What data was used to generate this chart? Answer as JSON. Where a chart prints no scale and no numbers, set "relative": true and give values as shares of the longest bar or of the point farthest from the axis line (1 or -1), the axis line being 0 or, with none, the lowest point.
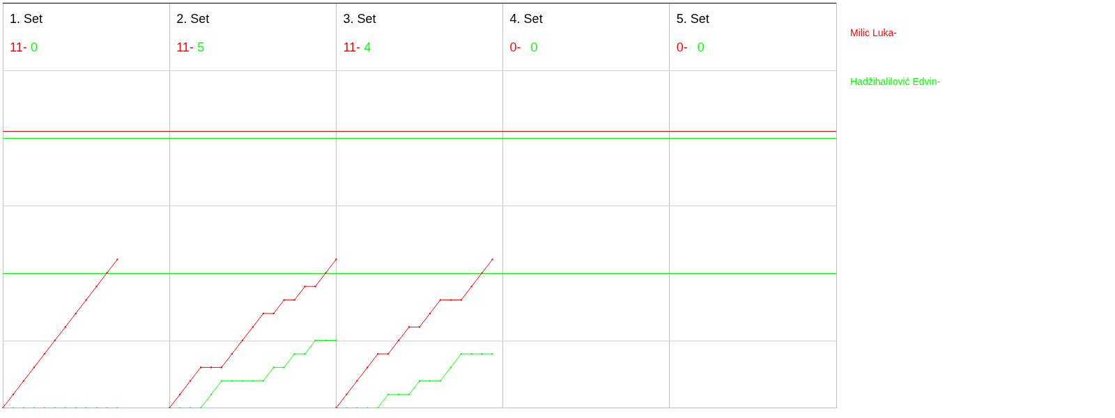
{
  "chart_data": {
    "type": "line",
    "relative": true,
    "marker": "square",
    "grid": "x",
    "annotations": [
      "1. Set",
      "11-",
      "0",
      "2. Set",
      "11-",
      "5",
      "3. Set",
      "11-",
      "4",
      "4. Set",
      "0-",
      "0",
      "5. Set",
      "0-",
      "0"
    ],
    "categories": [
      null,
      null,
      null,
      null,
      null,
      null,
      null,
      null,
      null,
      null,
      null,
      null,
      null,
      null,
      null,
      null,
      null,
      null,
      null,
      null,
      null,
      null,
      null,
      null,
      null,
      null,
      null,
      null,
      null,
      null,
      null,
      null,
      null,
      null,
      null,
      null,
      null,
      null,
      null,
      null,
      null,
      null,
      null,
      null,
      null,
      null,
      null,
      null,
      null,
      null,
      null,
      null,
      null,
      null,
      null,
      null,
      null,
      null,
      null,
      null,
      null,
      null,
      null,
      null,
      null,
      null,
      null,
      null,
      null,
      null,
      null,
      null,
      null,
      null,
      null,
      null,
      null,
      null,
      null,
      null,
      null
    ],
    "series": [
      {
        "name": "Milic Luka-",
        "color": "#ff0000",
        "values": [
          0,
          0.091,
          0.182,
          0.273,
          0.364,
          0.455,
          0.545,
          0.636,
          0.727,
          0.818,
          0.909,
          1,
          null,
          null,
          null,
          null,
          null,
          null,
          null,
          null,
          null,
          null,
          null,
          null,
          null,
          null,
          null,
          null,
          null,
          null,
          null,
          null,
          null,
          null,
          null,
          null,
          null,
          null,
          null,
          null,
          null,
          null,
          null,
          null,
          null,
          null,
          null,
          null,
          null,
          null,
          null,
          null,
          null,
          null,
          null,
          null,
          null,
          null,
          null,
          null,
          null,
          null,
          null,
          null,
          null,
          null,
          null,
          null,
          null,
          null,
          null,
          null,
          null,
          null,
          null,
          null,
          null,
          null,
          null,
          null,
          null
        ]
      },
      {
        "name": "Hadžihalilović Edvin-",
        "color": "#00ff00",
        "values": [
          0,
          0,
          0,
          0,
          0,
          0,
          0,
          0,
          0,
          0,
          0,
          0,
          null,
          null,
          null,
          null,
          null,
          null,
          null,
          null,
          null,
          null,
          null,
          null,
          null,
          null,
          null,
          null,
          null,
          null,
          null,
          null,
          null,
          null,
          null,
          null,
          null,
          null,
          null,
          null,
          null,
          null,
          null,
          null,
          null,
          null,
          null,
          null,
          null,
          null,
          null,
          null,
          null,
          null,
          null,
          null,
          null,
          null,
          null,
          null,
          null,
          null,
          null,
          null,
          null,
          null,
          null,
          null,
          null,
          null,
          null,
          null,
          null,
          null,
          null,
          null,
          null,
          null,
          null,
          null,
          null
        ]
      },
      {
        "color": "#ff0000",
        "values": [
          null,
          null,
          null,
          null,
          null,
          null,
          null,
          null,
          null,
          null,
          null,
          null,
          null,
          null,
          null,
          null,
          0,
          0.091,
          0.182,
          0.273,
          0.273,
          0.273,
          0.364,
          0.455,
          0.545,
          0.636,
          0.636,
          0.727,
          0.727,
          0.818,
          0.818,
          0.909,
          1,
          null,
          null,
          null,
          null,
          null,
          null,
          null,
          null,
          null,
          null,
          null,
          null,
          null,
          null,
          null,
          null,
          null,
          null,
          null,
          null,
          null,
          null,
          null,
          null,
          null,
          null,
          null,
          null,
          null,
          null,
          null,
          null,
          null,
          null,
          null,
          null,
          null,
          null,
          null,
          null,
          null,
          null,
          null,
          null,
          null,
          null,
          null,
          null
        ]
      },
      {
        "color": "#00ff00",
        "values": [
          null,
          null,
          null,
          null,
          null,
          null,
          null,
          null,
          null,
          null,
          null,
          null,
          null,
          null,
          null,
          null,
          0,
          0,
          0,
          0,
          0.091,
          0.182,
          0.182,
          0.182,
          0.182,
          0.182,
          0.273,
          0.273,
          0.364,
          0.364,
          0.455,
          0.455,
          0.455,
          null,
          null,
          null,
          null,
          null,
          null,
          null,
          null,
          null,
          null,
          null,
          null,
          null,
          null,
          null,
          null,
          null,
          null,
          null,
          null,
          null,
          null,
          null,
          null,
          null,
          null,
          null,
          null,
          null,
          null,
          null,
          null,
          null,
          null,
          null,
          null,
          null,
          null,
          null,
          null,
          null,
          null,
          null,
          null,
          null,
          null,
          null,
          null
        ]
      },
      {
        "color": "#ff0000",
        "values": [
          null,
          null,
          null,
          null,
          null,
          null,
          null,
          null,
          null,
          null,
          null,
          null,
          null,
          null,
          null,
          null,
          null,
          null,
          null,
          null,
          null,
          null,
          null,
          null,
          null,
          null,
          null,
          null,
          null,
          null,
          null,
          null,
          0,
          0.091,
          0.182,
          0.273,
          0.364,
          0.364,
          0.455,
          0.545,
          0.545,
          0.636,
          0.727,
          0.727,
          0.727,
          0.818,
          0.909,
          1,
          null,
          null,
          null,
          null,
          null,
          null,
          null,
          null,
          null,
          null,
          null,
          null,
          null,
          null,
          null,
          null,
          null,
          null,
          null,
          null,
          null,
          null,
          null,
          null,
          null,
          null,
          null,
          null,
          null,
          null,
          null,
          null,
          null
        ]
      },
      {
        "color": "#00ff00",
        "values": [
          null,
          null,
          null,
          null,
          null,
          null,
          null,
          null,
          null,
          null,
          null,
          null,
          null,
          null,
          null,
          null,
          null,
          null,
          null,
          null,
          null,
          null,
          null,
          null,
          null,
          null,
          null,
          null,
          null,
          null,
          null,
          null,
          0,
          0,
          0,
          0,
          0,
          0.091,
          0.091,
          0.091,
          0.182,
          0.182,
          0.182,
          0.273,
          0.364,
          0.364,
          0.364,
          0.364,
          null,
          null,
          null,
          null,
          null,
          null,
          null,
          null,
          null,
          null,
          null,
          null,
          null,
          null,
          null,
          null,
          null,
          null,
          null,
          null,
          null,
          null,
          null,
          null,
          null,
          null,
          null,
          null,
          null,
          null,
          null,
          null,
          null
        ]
      }
    ],
    "ref_lines": [
      {
        "axis": "y",
        "value": 0.455,
        "color": "#d3d3d3"
      },
      {
        "axis": "y",
        "value": 1.364,
        "color": "#d3d3d3"
      },
      {
        "axis": "y",
        "value": 2.273,
        "color": "#d3d3d3"
      },
      {
        "axis": "y",
        "value": 0.909,
        "color": "#00ff00"
      },
      {
        "axis": "y",
        "value": 1.818,
        "color": "#00ff00"
      },
      {
        "axis": "y",
        "value": 1.864,
        "color": "#ff0000"
      }
    ]
  }
}
